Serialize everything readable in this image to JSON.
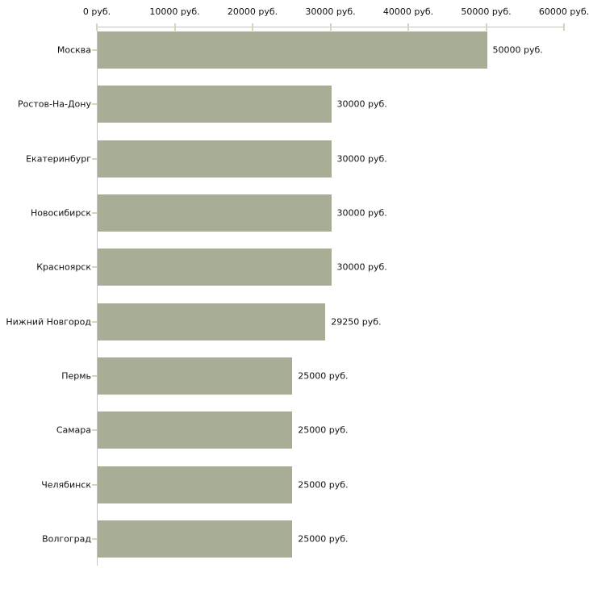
{
  "chart_data": {
    "type": "bar",
    "orientation": "horizontal",
    "title": "",
    "unit": "руб.",
    "categories": [
      "Москва",
      "Ростов-На-Дону",
      "Екатеринбург",
      "Новосибирск",
      "Красноярск",
      "Нижний Новгород",
      "Пермь",
      "Самара",
      "Челябинск",
      "Волгоград"
    ],
    "values": [
      50000,
      30000,
      30000,
      30000,
      30000,
      29250,
      25000,
      25000,
      25000,
      25000
    ],
    "value_labels": [
      "50000 руб.",
      "30000 руб.",
      "30000 руб.",
      "30000 руб.",
      "30000 руб.",
      "29250 руб.",
      "25000 руб.",
      "25000 руб.",
      "25000 руб.",
      "25000 руб."
    ],
    "x_axis": {
      "position": "top",
      "min": 0,
      "max": 60000,
      "ticks": [
        0,
        10000,
        20000,
        30000,
        40000,
        50000,
        60000
      ],
      "tick_labels": [
        "0 руб.",
        "10000 руб.",
        "20000 руб.",
        "30000 руб.",
        "40000 руб.",
        "50000 руб.",
        "60000 руб."
      ]
    },
    "grid": false,
    "legend": false,
    "colors": {
      "bar": "#a8ad96",
      "axis_line": "#c4c4c4",
      "tick": "#d6d7b0",
      "text": "#111111",
      "background": "#ffffff"
    }
  }
}
